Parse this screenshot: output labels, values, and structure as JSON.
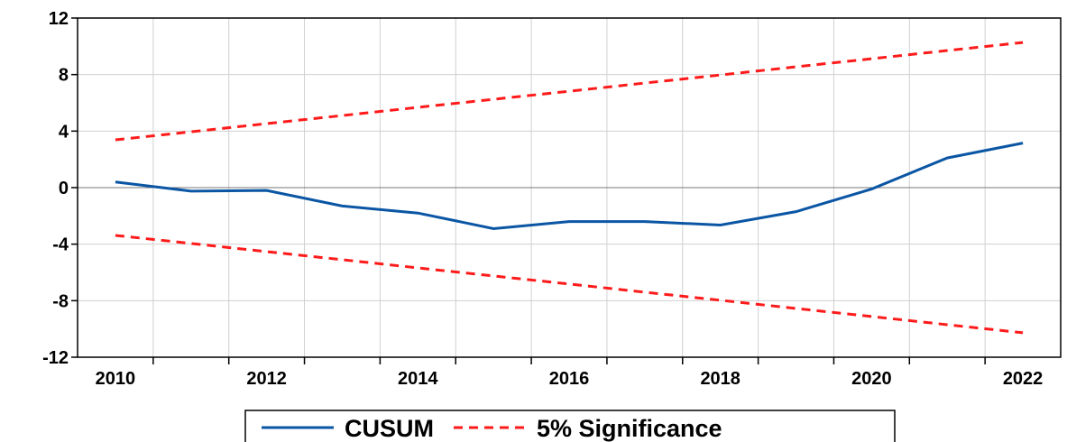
{
  "chart_data": {
    "type": "line",
    "x": [
      2010,
      2011,
      2012,
      2013,
      2014,
      2015,
      2016,
      2017,
      2018,
      2019,
      2020,
      2021,
      2022
    ],
    "series": [
      {
        "name": "CUSUM",
        "color": "#0b56a4",
        "values": [
          0.4,
          -0.25,
          -0.2,
          -1.3,
          -1.8,
          -2.9,
          -2.4,
          -2.4,
          -2.65,
          -1.7,
          -0.1,
          2.1,
          3.15
        ]
      },
      {
        "name": "5% Significance",
        "color": "#ff1a1a",
        "dashed": true,
        "values": [
          3.38,
          3.95,
          4.53,
          5.1,
          5.68,
          6.25,
          6.82,
          7.4,
          7.97,
          8.55,
          9.12,
          9.7,
          10.27
        ],
        "lower": [
          -3.38,
          -3.95,
          -4.53,
          -5.1,
          -5.68,
          -6.25,
          -6.82,
          -7.4,
          -7.97,
          -8.55,
          -9.12,
          -9.7,
          -10.27
        ]
      }
    ],
    "xlim": [
      2009.5,
      2022.5
    ],
    "xticks": [
      2010,
      2012,
      2014,
      2016,
      2018,
      2020,
      2022
    ],
    "ylim": [
      -12,
      12
    ],
    "yticks": [
      -12,
      -8,
      -4,
      0,
      4,
      8,
      12
    ],
    "grid": true,
    "legend": "bottom"
  }
}
